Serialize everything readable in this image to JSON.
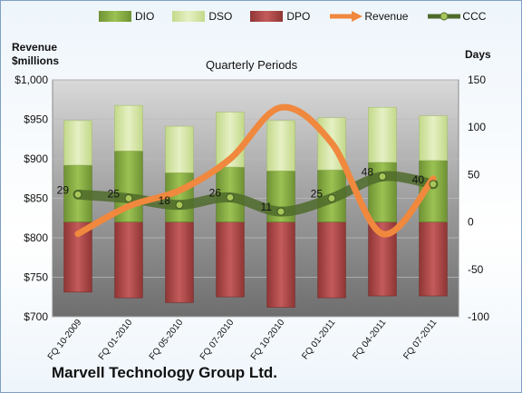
{
  "chart_data": {
    "type": "bar",
    "title": "Quarterly Periods",
    "company": "Marvell Technology Group Ltd.",
    "left_axis_title": [
      "Revenue",
      "$millions"
    ],
    "right_axis_title": "Days",
    "left_ylim": [
      700,
      1000
    ],
    "right_ylim": [
      -100,
      150
    ],
    "left_ticks": [
      "$700",
      "$750",
      "$800",
      "$850",
      "$900",
      "$950",
      "$1,000"
    ],
    "right_ticks": [
      "-100",
      "-50",
      "0",
      "50",
      "100",
      "150"
    ],
    "grid": true,
    "legend_position": "top",
    "categories": [
      "FQ 10-2009",
      "FQ 01-2010",
      "FQ 05-2010",
      "FQ 07-2010",
      "FQ 10-2010",
      "FQ 01-2011",
      "FQ 04-2011",
      "FQ 07-2011"
    ],
    "series": [
      {
        "name": "DIO",
        "axis": "right",
        "kind": "stacked-bar",
        "color": "#8fb24a",
        "values": [
          60,
          75,
          52,
          58,
          54,
          55,
          63,
          65
        ]
      },
      {
        "name": "DSO",
        "axis": "right",
        "kind": "stacked-bar",
        "color": "#d6e6a8",
        "values": [
          47,
          48,
          49,
          58,
          53,
          55,
          58,
          47
        ]
      },
      {
        "name": "DPO",
        "axis": "right",
        "kind": "negative-bar",
        "color": "#b84c4c",
        "values": [
          -74,
          -80,
          -85,
          -79,
          -90,
          -80,
          -78,
          -78
        ]
      },
      {
        "name": "Revenue",
        "axis": "left",
        "kind": "line",
        "color": "#f0883e",
        "values": [
          805,
          840,
          860,
          900,
          965,
          920,
          805,
          875
        ]
      },
      {
        "name": "CCC",
        "axis": "right",
        "kind": "line",
        "color": "#4f6b2a",
        "values": [
          29,
          25,
          18,
          26,
          11,
          25,
          48,
          40
        ]
      }
    ],
    "ccc_labels": [
      "29",
      "25",
      "18",
      "26",
      "11",
      "25",
      "48",
      "40"
    ]
  }
}
